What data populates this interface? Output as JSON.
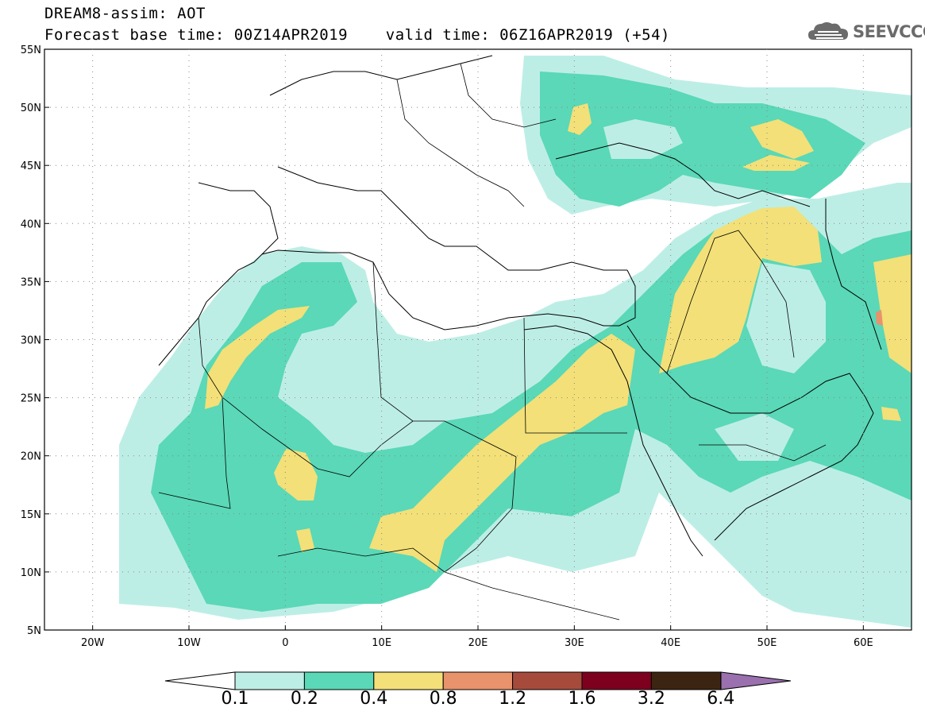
{
  "header": {
    "title_line1": "DREAM8-assim: AOT",
    "title_line2": "Forecast base time: 00Z14APR2019    valid time: 06Z16APR2019 (+54)"
  },
  "logo": {
    "text": "SEEVCCC",
    "icon": "cloud-icon",
    "color": "#6b6b6b"
  },
  "map": {
    "lat_labels": [
      "55N",
      "50N",
      "45N",
      "40N",
      "35N",
      "30N",
      "25N",
      "20N",
      "15N",
      "10N",
      "5N"
    ],
    "lon_labels": [
      "20W",
      "10W",
      "0",
      "10E",
      "20E",
      "30E",
      "40E",
      "50E",
      "60E"
    ],
    "extent": {
      "lon": [
        -25,
        65
      ],
      "lat": [
        5,
        55
      ]
    },
    "grid": "dotted"
  },
  "colorbar": {
    "labels": [
      "0.1",
      "0.2",
      "0.4",
      "0.8",
      "1.2",
      "1.6",
      "3.2",
      "6.4"
    ],
    "colors": [
      "#ffffff",
      "#bdeee6",
      "#5ad8b7",
      "#f3e078",
      "#e8936b",
      "#a64b3b",
      "#7d001e",
      "#3b2512",
      "#9a70ae"
    ]
  }
}
